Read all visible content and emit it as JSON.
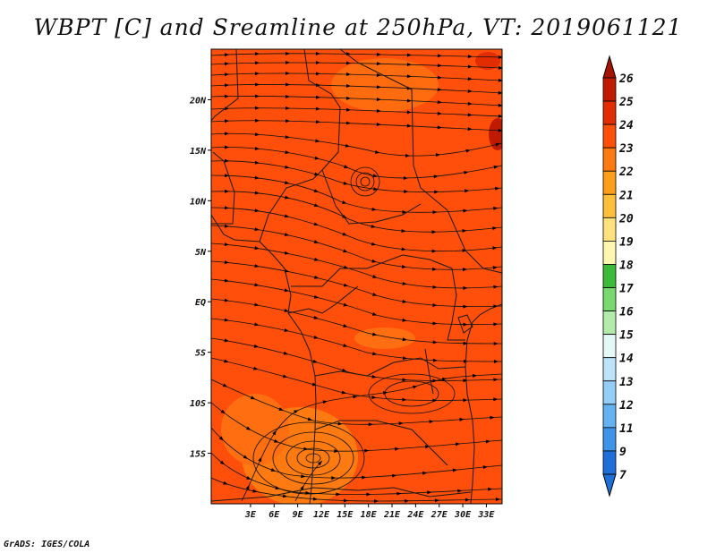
{
  "title": "WBPT [C] and Sreamline at 250hPa, VT: 2019061121",
  "credit": "GrADS: IGES/COLA",
  "map": {
    "lat_range": [
      -20,
      25
    ],
    "lon_range": [
      -2,
      35
    ],
    "lat_ticks": [
      {
        "value": 20,
        "label": "20N"
      },
      {
        "value": 15,
        "label": "15N"
      },
      {
        "value": 10,
        "label": "10N"
      },
      {
        "value": 5,
        "label": "5N"
      },
      {
        "value": 0,
        "label": "EQ"
      },
      {
        "value": -5,
        "label": "5S"
      },
      {
        "value": -10,
        "label": "10S"
      },
      {
        "value": -15,
        "label": "15S"
      }
    ],
    "lon_ticks": [
      {
        "value": 3,
        "label": "3E"
      },
      {
        "value": 6,
        "label": "6E"
      },
      {
        "value": 9,
        "label": "9E"
      },
      {
        "value": 12,
        "label": "12E"
      },
      {
        "value": 15,
        "label": "15E"
      },
      {
        "value": 18,
        "label": "18E"
      },
      {
        "value": 21,
        "label": "21E"
      },
      {
        "value": 24,
        "label": "24E"
      },
      {
        "value": 27,
        "label": "27E"
      },
      {
        "value": 30,
        "label": "30E"
      },
      {
        "value": 33,
        "label": "33E"
      }
    ],
    "background_color": "#ff4f0a"
  },
  "colorbar": {
    "labels": [
      "26",
      "25",
      "24",
      "23",
      "22",
      "21",
      "20",
      "19",
      "18",
      "17",
      "16",
      "15",
      "14",
      "13",
      "12",
      "11",
      "9",
      "7"
    ],
    "colors": [
      "#a51400",
      "#c01b00",
      "#e12d00",
      "#ff4f0a",
      "#ff7a10",
      "#ff9e19",
      "#ffbe3c",
      "#ffe27d",
      "#fff6b0",
      "#3cbb38",
      "#78d96e",
      "#b2ecac",
      "#e4f9f7",
      "#bde3fb",
      "#94cdf6",
      "#65b2f0",
      "#3e94e6",
      "#1f6fd9"
    ],
    "top_color": "#a51400",
    "bottom_color": "#1f6fd9"
  }
}
